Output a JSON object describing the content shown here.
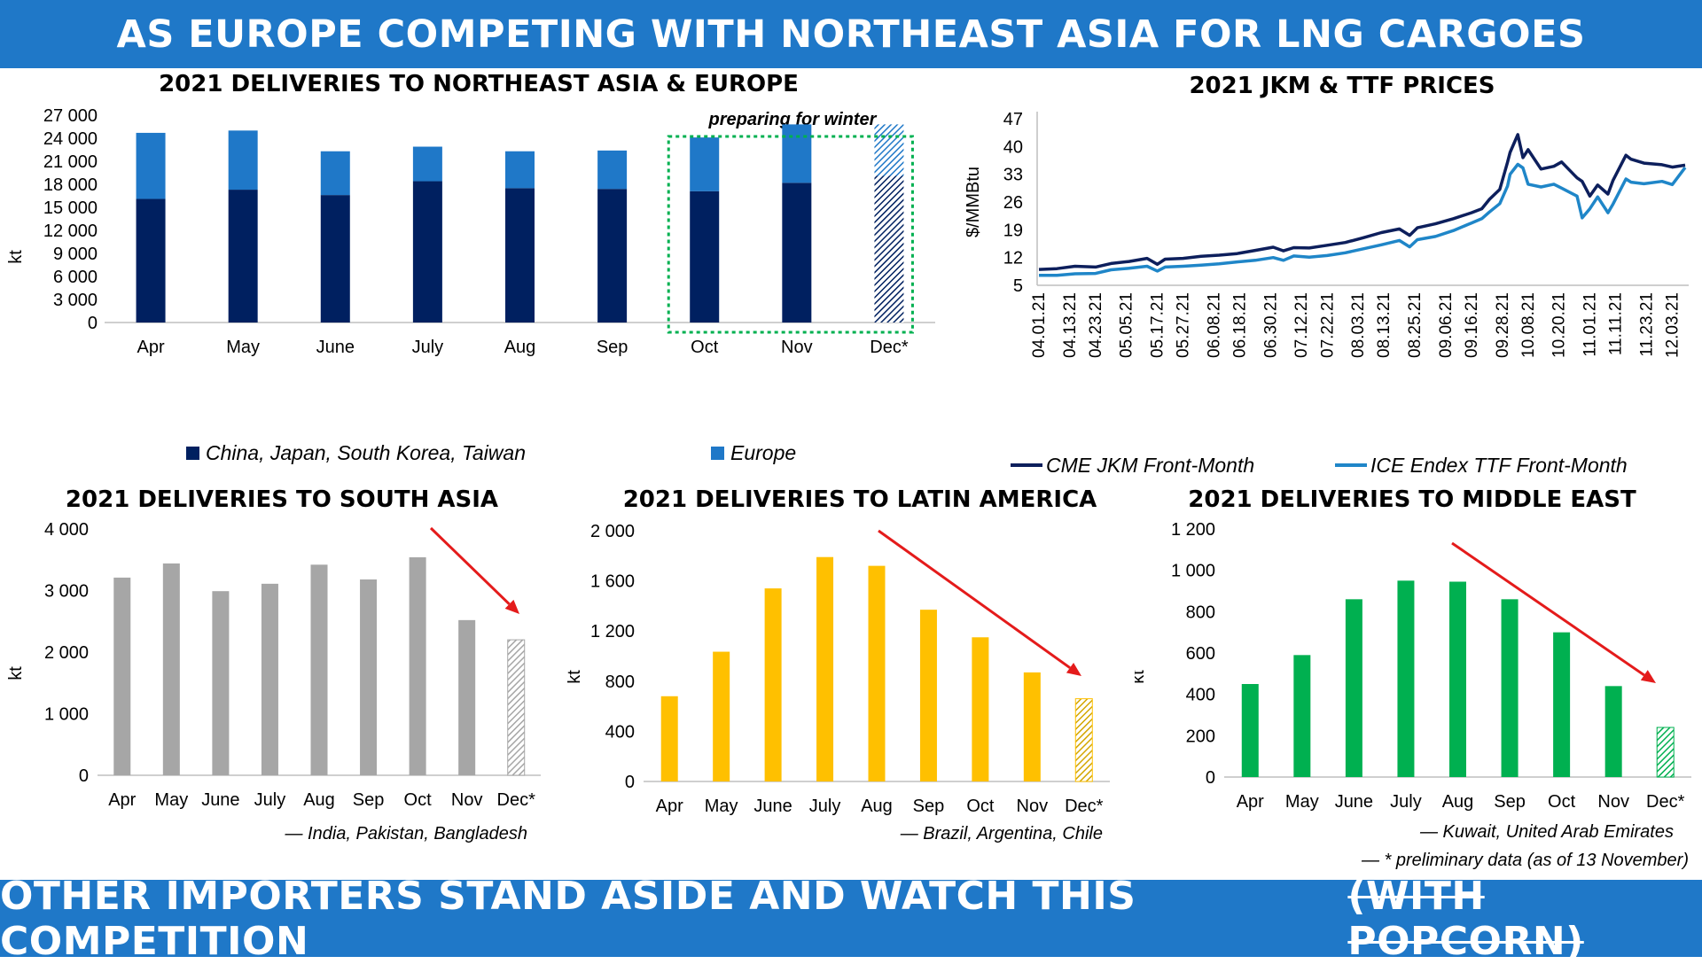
{
  "header": {
    "title": "AS EUROPE COMPETING WITH NORTHEAST ASIA FOR LNG CARGOES"
  },
  "footer": {
    "text": "OTHER IMPORTERS STAND ASIDE AND WATCH THIS COMPETITION",
    "struck_text": "(WITH POPCORN)"
  },
  "footnote": "— * preliminary data (as of 13 November)",
  "colors": {
    "banner": "#1f78c8",
    "asia": "#002060",
    "europe": "#1f78c8",
    "jkm": "#0d1f5c",
    "ttf": "#1f86c8",
    "south_asia": "#a6a6a6",
    "latin_america": "#ffc000",
    "middle_east": "#00b050",
    "trend_arrow": "#e41b1b",
    "winter_box": "#00b050"
  },
  "chart_data": [
    {
      "id": "ne_asia_europe",
      "type": "bar",
      "stacked": true,
      "title": "2021 DELIVERIES TO NORTHEAST ASIA & EUROPE",
      "ylabel": "kt",
      "ylim": [
        0,
        27000
      ],
      "yticks": [
        "0",
        "3 000",
        "6 000",
        "9 000",
        "12 000",
        "15 000",
        "18 000",
        "21 000",
        "24 000",
        "27 000"
      ],
      "categories": [
        "Apr",
        "May",
        "June",
        "July",
        "Aug",
        "Sep",
        "Oct",
        "Nov",
        "Dec*"
      ],
      "series": [
        {
          "name": "China, Japan, South Korea, Taiwan",
          "values": [
            16100,
            17300,
            16600,
            18400,
            17500,
            17400,
            17100,
            18200,
            19100
          ]
        },
        {
          "name": "Europe",
          "values": [
            8600,
            7700,
            5700,
            4500,
            4800,
            5000,
            7000,
            7600,
            6700
          ]
        }
      ],
      "preliminary": "Dec*",
      "annotation": "preparing for winter",
      "highlight": [
        "Oct",
        "Dec*"
      ],
      "legend": "bottom"
    },
    {
      "id": "jkm_ttf",
      "type": "line",
      "title": "2021 JKM & TTF PRICES",
      "ylabel": "$/MMBtu",
      "ylim": [
        5,
        47
      ],
      "yticks": [
        "5",
        "12",
        "19",
        "26",
        "33",
        "40",
        "47"
      ],
      "xticks": [
        "04.01.21",
        "04.13.21",
        "04.23.21",
        "05.05.21",
        "05.17.21",
        "05.27.21",
        "06.08.21",
        "06.18.21",
        "06.30.21",
        "07.12.21",
        "07.22.21",
        "08.03.21",
        "08.13.21",
        "08.25.21",
        "09.06.21",
        "09.16.21",
        "09.28.21",
        "10.08.21",
        "10.20.21",
        "11.01.21",
        "11.11.21",
        "11.23.21",
        "12.03.21"
      ],
      "x": [
        "04.01.21",
        "04.08.21",
        "04.15.21",
        "04.23.21",
        "04.29.21",
        "05.06.21",
        "05.13.21",
        "05.17.21",
        "05.20.21",
        "05.27.21",
        "06.03.21",
        "06.10.21",
        "06.17.21",
        "06.24.21",
        "07.01.21",
        "07.05.21",
        "07.09.21",
        "07.15.21",
        "07.22.21",
        "07.29.21",
        "08.05.21",
        "08.12.21",
        "08.19.21",
        "08.23.21",
        "08.26.21",
        "09.02.21",
        "09.09.21",
        "09.16.21",
        "09.20.21",
        "09.23.21",
        "09.27.21",
        "09.30.21",
        "10.01.21",
        "10.04.21",
        "10.06.21",
        "10.08.21",
        "10.13.21",
        "10.18.21",
        "10.21.21",
        "10.27.21",
        "10.29.21",
        "11.01.21",
        "11.04.21",
        "11.08.21",
        "11.10.21",
        "11.15.21",
        "11.17.21",
        "11.22.21",
        "11.29.21",
        "12.03.21",
        "12.08.21"
      ],
      "series": [
        {
          "name": "CME JKM Front-Month",
          "values": [
            9.0,
            9.2,
            9.8,
            9.6,
            10.5,
            11.0,
            11.8,
            10.3,
            11.6,
            11.8,
            12.3,
            12.6,
            13.0,
            13.8,
            14.6,
            13.7,
            14.5,
            14.4,
            15.1,
            15.8,
            17.0,
            18.3,
            19.2,
            17.6,
            19.5,
            20.5,
            21.8,
            23.3,
            24.3,
            26.7,
            29.2,
            36.0,
            38.5,
            43.0,
            37.2,
            39.2,
            34.3,
            35.0,
            36.1,
            32.1,
            31.2,
            27.5,
            30.3,
            28.0,
            31.5,
            37.8,
            36.8,
            35.8,
            35.4,
            34.8,
            35.3
          ]
        },
        {
          "name": "ICE Endex TTF Front-Month",
          "values": [
            7.5,
            7.5,
            7.9,
            8.0,
            8.9,
            9.3,
            9.8,
            8.6,
            9.6,
            9.8,
            10.1,
            10.4,
            10.9,
            11.3,
            12.0,
            11.3,
            12.4,
            12.1,
            12.5,
            13.2,
            14.2,
            15.2,
            16.3,
            14.7,
            16.5,
            17.3,
            18.8,
            20.7,
            21.8,
            23.5,
            25.6,
            30.0,
            33.0,
            35.5,
            34.6,
            30.5,
            29.8,
            30.5,
            29.5,
            27.5,
            22.0,
            24.3,
            27.3,
            23.3,
            25.5,
            31.8,
            31.0,
            30.6,
            31.2,
            30.4,
            34.7
          ]
        }
      ],
      "legend": "bottom"
    },
    {
      "id": "south_asia",
      "type": "bar",
      "title": "2021 DELIVERIES TO SOUTH ASIA",
      "ylabel": "kt",
      "ylim": [
        0,
        4000
      ],
      "yticks": [
        "0",
        "1 000",
        "2 000",
        "3 000",
        "4 000"
      ],
      "categories": [
        "Apr",
        "May",
        "June",
        "July",
        "Aug",
        "Sep",
        "Oct",
        "Nov",
        "Dec*"
      ],
      "values": [
        3210,
        3440,
        2990,
        3110,
        3420,
        3180,
        3540,
        2520,
        2200
      ],
      "preliminary": "Dec*",
      "note": "— India, Pakistan, Bangladesh"
    },
    {
      "id": "latin_america",
      "type": "bar",
      "title": "2021 DELIVERIES TO LATIN AMERICA",
      "ylabel": "kt",
      "ylim": [
        0,
        2000
      ],
      "yticks": [
        "0",
        "400",
        "800",
        "1 200",
        "1 600",
        "2 000"
      ],
      "categories": [
        "Apr",
        "May",
        "June",
        "July",
        "Aug",
        "Sep",
        "Oct",
        "Nov",
        "Dec*"
      ],
      "values": [
        680,
        1035,
        1540,
        1790,
        1720,
        1370,
        1150,
        870,
        660
      ],
      "preliminary": "Dec*",
      "note": "— Brazil, Argentina, Chile"
    },
    {
      "id": "middle_east",
      "type": "bar",
      "title": "2021 DELIVERIES TO MIDDLE EAST",
      "ylabel": "kt",
      "ylim": [
        0,
        1200
      ],
      "yticks": [
        "0",
        "200",
        "400",
        "600",
        "800",
        "1 000",
        "1 200"
      ],
      "categories": [
        "Apr",
        "May",
        "June",
        "July",
        "Aug",
        "Sep",
        "Oct",
        "Nov",
        "Dec*"
      ],
      "values": [
        450,
        590,
        860,
        950,
        945,
        860,
        700,
        440,
        240
      ],
      "preliminary": "Dec*",
      "note": "— Kuwait, United Arab Emirates"
    }
  ]
}
